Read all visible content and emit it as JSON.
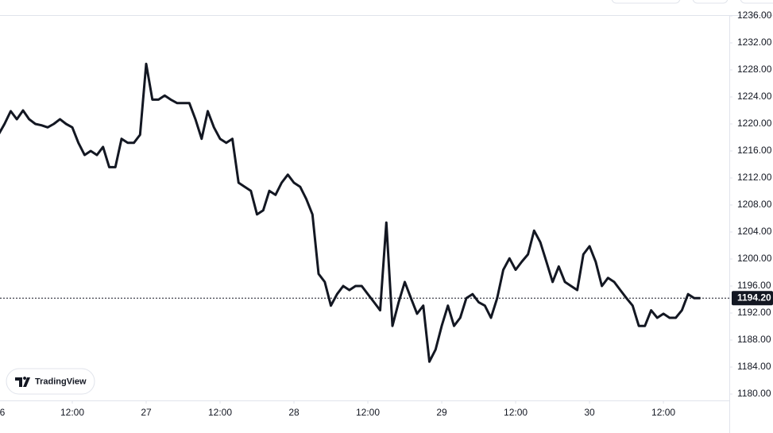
{
  "chart_data": {
    "type": "line",
    "values": [
      1218.4,
      1220,
      1221.9,
      1220.7,
      1222,
      1220.7,
      1220,
      1219.8,
      1219.5,
      1220,
      1220.7,
      1220,
      1219.5,
      1217.2,
      1215.4,
      1216,
      1215.4,
      1216.6,
      1213.6,
      1213.6,
      1217.8,
      1217.2,
      1217.2,
      1218.4,
      1228.9,
      1223.6,
      1223.6,
      1224.2,
      1223.6,
      1223.1,
      1223.1,
      1223.1,
      1220.7,
      1217.8,
      1221.9,
      1219.5,
      1217.8,
      1217.2,
      1217.8,
      1211.3,
      1210.7,
      1210.1,
      1206.6,
      1207.2,
      1210.1,
      1209.5,
      1211.3,
      1212.5,
      1211.3,
      1210.7,
      1208.9,
      1206.6,
      1197.8,
      1196.6,
      1193.1,
      1194.8,
      1196,
      1195.4,
      1196,
      1196,
      1194.8,
      1193.6,
      1192.4,
      1205.4,
      1190.1,
      1193.6,
      1196.6,
      1194.2,
      1191.9,
      1193.1,
      1184.8,
      1186.6,
      1190.1,
      1193.1,
      1190.1,
      1191.3,
      1194.2,
      1194.8,
      1193.6,
      1193.1,
      1191.3,
      1194.2,
      1198.4,
      1200.1,
      1198.4,
      1199.6,
      1200.7,
      1204.2,
      1202.5,
      1199.6,
      1196.6,
      1198.9,
      1196.6,
      1196,
      1195.4,
      1200.7,
      1201.9,
      1199.6,
      1196,
      1197.2,
      1196.6,
      1195.4,
      1194.2,
      1193.1,
      1190.1,
      1190.1,
      1192.4,
      1191.3,
      1191.9,
      1191.3,
      1191.3,
      1192.4,
      1194.8,
      1194.2,
      1194.2
    ],
    "color": "#131722",
    "xlim": [
      0.26,
      118.7
    ],
    "xticks": [
      {
        "value": 0,
        "label": "6"
      },
      {
        "value": 12,
        "label": "12:00"
      },
      {
        "value": 24,
        "label": "27"
      },
      {
        "value": 36,
        "label": "12:00"
      },
      {
        "value": 48,
        "label": "28"
      },
      {
        "value": 60,
        "label": "12:00"
      },
      {
        "value": 72,
        "label": "29"
      },
      {
        "value": 84,
        "label": "12:00"
      },
      {
        "value": 96,
        "label": "30"
      },
      {
        "value": 108,
        "label": "12:00"
      }
    ],
    "ylim": [
      1179.06,
      1236
    ],
    "yticks": [
      {
        "value": 1180,
        "label": "1180.00"
      },
      {
        "value": 1184,
        "label": "1184.00"
      },
      {
        "value": 1188,
        "label": "1188.00"
      },
      {
        "value": 1192,
        "label": "1192.00"
      },
      {
        "value": 1196,
        "label": "1196.00"
      },
      {
        "value": 1200,
        "label": "1200.00"
      },
      {
        "value": 1204,
        "label": "1204.00"
      },
      {
        "value": 1208,
        "label": "1208.00"
      },
      {
        "value": 1212,
        "label": "1212.00"
      },
      {
        "value": 1216,
        "label": "1216.00"
      },
      {
        "value": 1220,
        "label": "1220.00"
      },
      {
        "value": 1224,
        "label": "1224.00"
      },
      {
        "value": 1228,
        "label": "1228.00"
      },
      {
        "value": 1232,
        "label": "1232.00"
      },
      {
        "value": 1236,
        "label": "1236.00"
      }
    ],
    "last_price": {
      "value": 1194.2,
      "label": "1194.20"
    },
    "watermark": "TradingView"
  }
}
